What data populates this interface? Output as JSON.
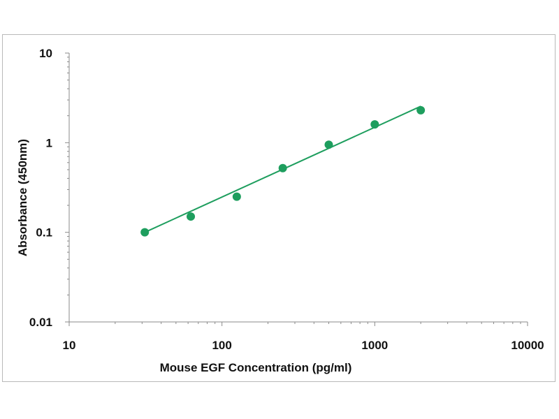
{
  "chart_data": {
    "type": "scatter",
    "title": "",
    "xlabel": "Mouse EGF Concentration (pg/ml)",
    "ylabel": "Absorbance (450nm)",
    "xscale": "log",
    "yscale": "log",
    "xlim": [
      10,
      10000
    ],
    "ylim": [
      0.01,
      10
    ],
    "x_ticks": [
      "10",
      "100",
      "1000",
      "10000"
    ],
    "y_ticks": [
      "10",
      "1",
      "0.1",
      "0.01"
    ],
    "grid": false,
    "legend": "none",
    "color": "#1e9e5e",
    "points": [
      {
        "x": 31.25,
        "y": 0.1
      },
      {
        "x": 62.5,
        "y": 0.15
      },
      {
        "x": 125,
        "y": 0.25
      },
      {
        "x": 250,
        "y": 0.52
      },
      {
        "x": 500,
        "y": 0.95
      },
      {
        "x": 1000,
        "y": 1.6
      },
      {
        "x": 2000,
        "y": 2.3
      }
    ],
    "fit_line": {
      "x": [
        31.25,
        2000
      ],
      "y": [
        0.1,
        2.55
      ]
    }
  }
}
